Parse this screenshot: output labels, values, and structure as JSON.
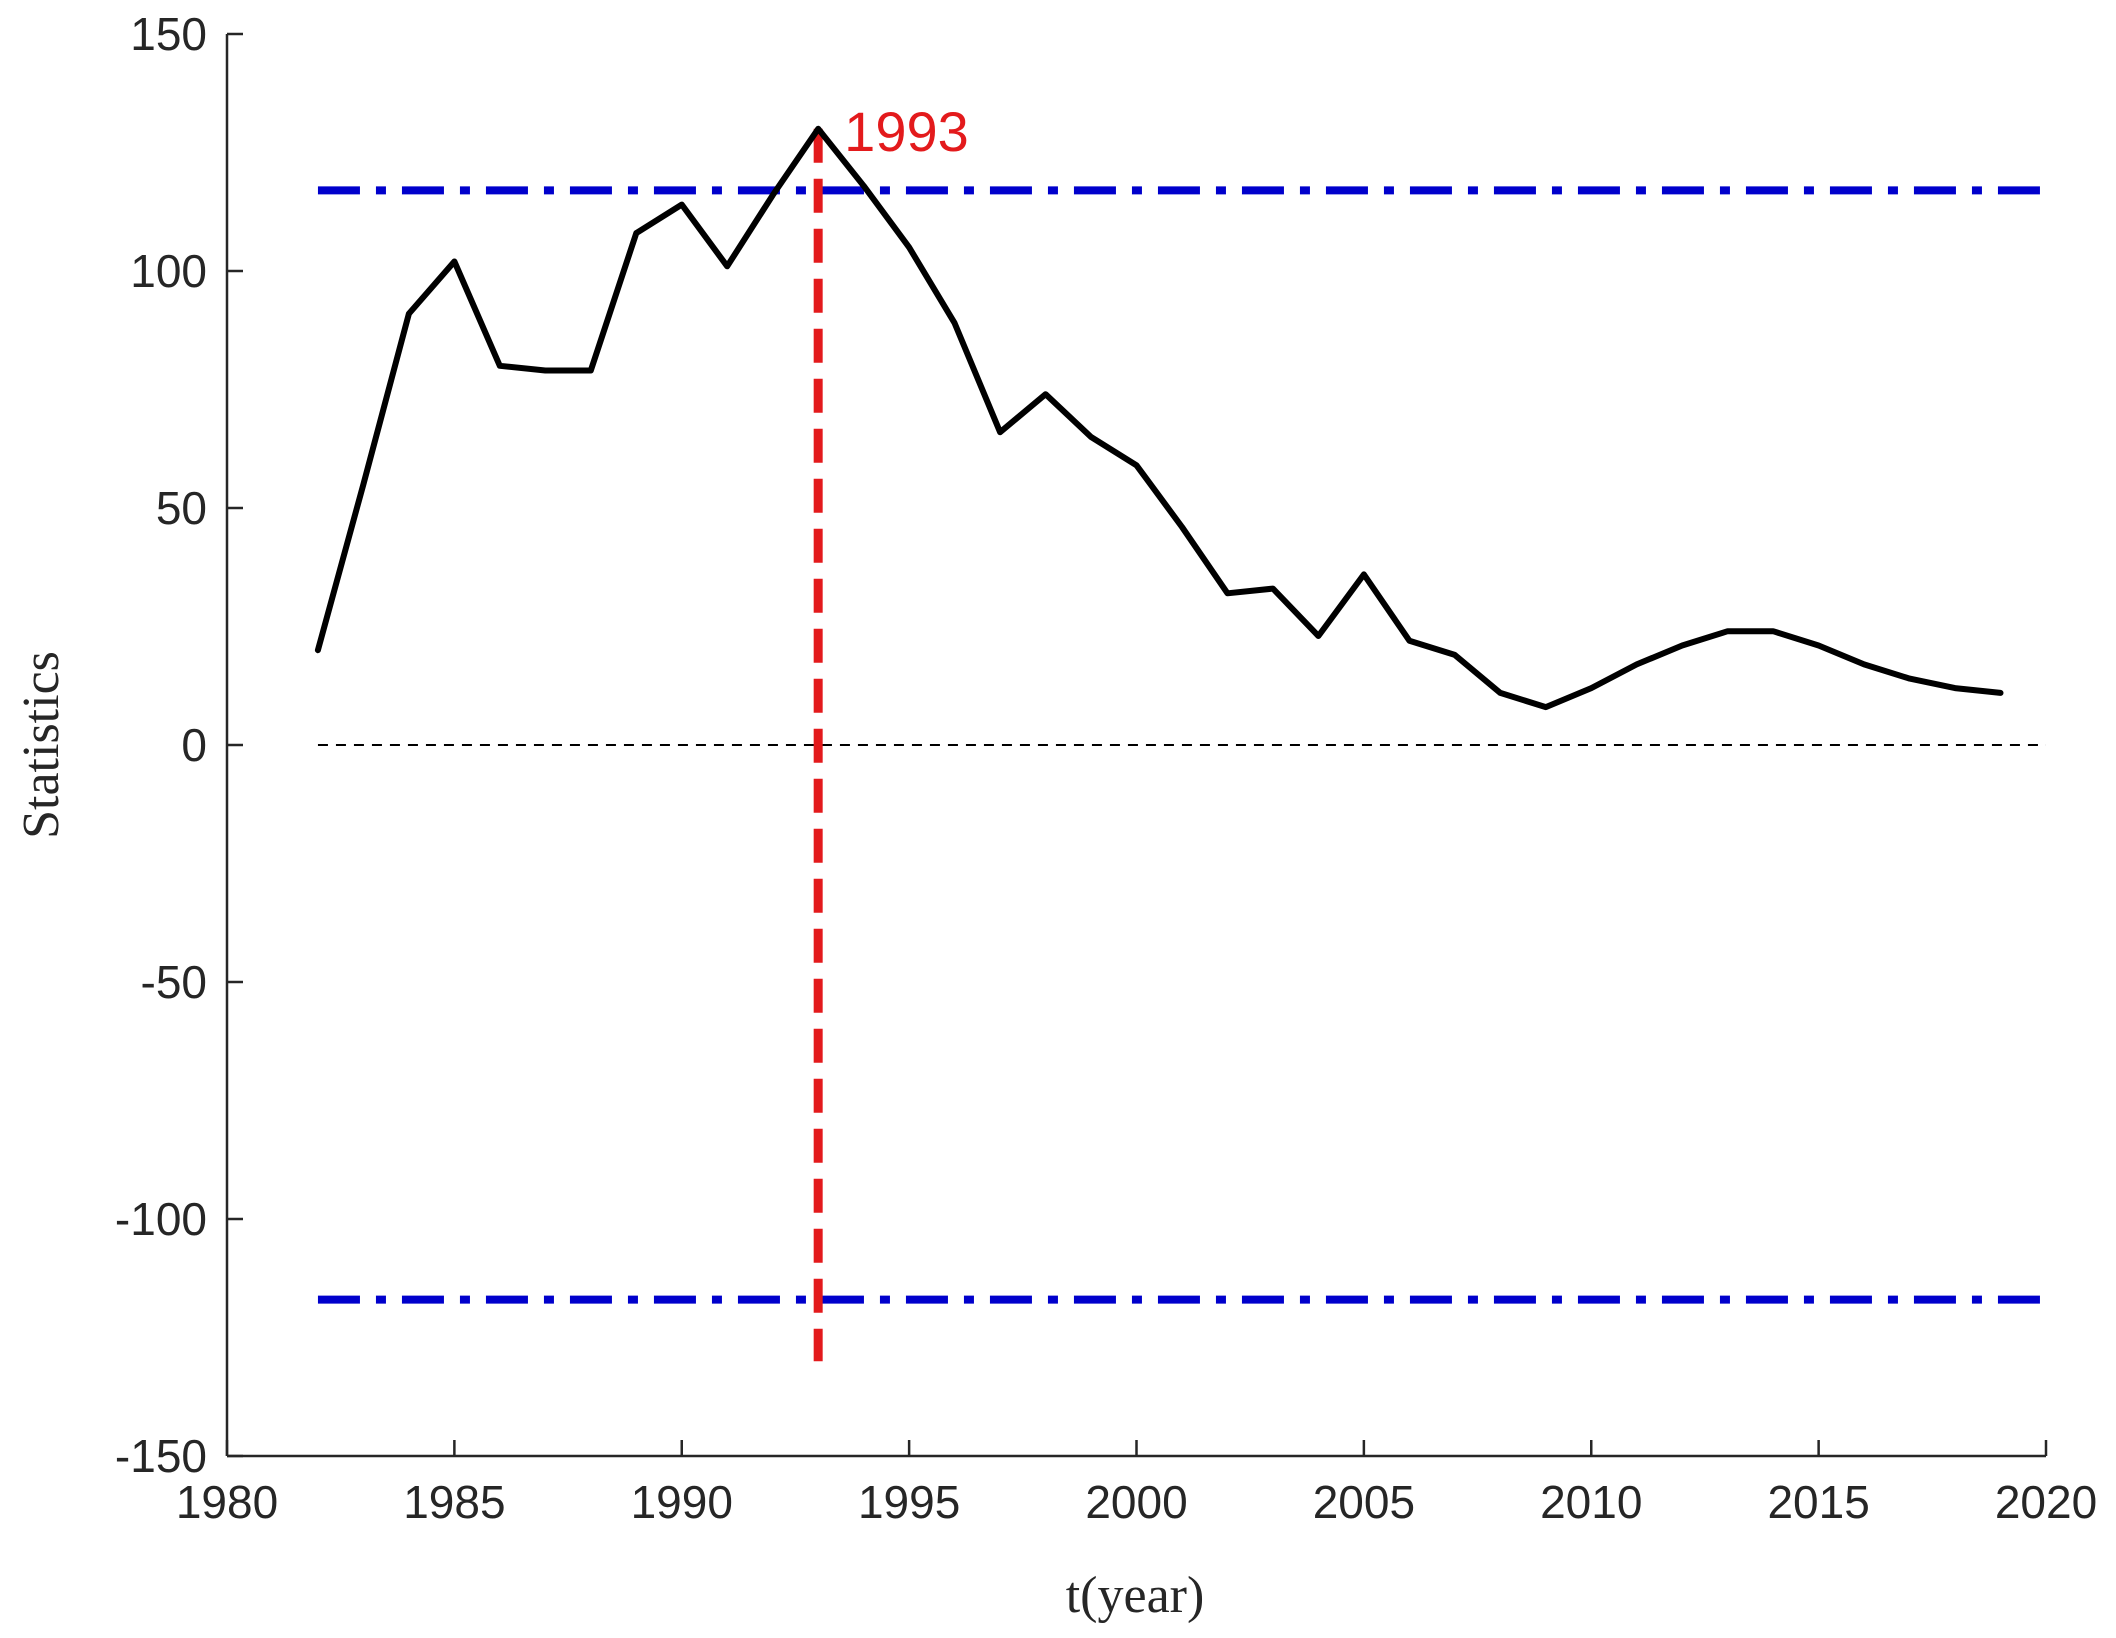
{
  "chart_data": {
    "type": "line",
    "xlabel": "t(year)",
    "ylabel": "Statistics",
    "xlim": [
      1980,
      2020
    ],
    "ylim": [
      -150,
      150
    ],
    "xticks": [
      1980,
      1985,
      1990,
      1995,
      2000,
      2005,
      2010,
      2015,
      2020
    ],
    "yticks": [
      150,
      100,
      50,
      0,
      -50,
      -100,
      -150
    ],
    "grid": false,
    "series": [
      {
        "color": "#000000",
        "x": [
          1982,
          1983,
          1984,
          1985,
          1986,
          1987,
          1988,
          1989,
          1990,
          1991,
          1992,
          1993,
          1994,
          1995,
          1996,
          1997,
          1998,
          1999,
          2000,
          2001,
          2002,
          2003,
          2004,
          2005,
          2006,
          2007,
          2008,
          2009,
          2010,
          2011,
          2012,
          2013,
          2014,
          2015,
          2016,
          2017,
          2018,
          2019
        ],
        "y": [
          20,
          55,
          91,
          102,
          80,
          79,
          79,
          108,
          114,
          101,
          116,
          130,
          118,
          105,
          89,
          66,
          74,
          65,
          59,
          46,
          32,
          33,
          23,
          36,
          22,
          19,
          11,
          8,
          12,
          17,
          21,
          24,
          24,
          21,
          17,
          14,
          12,
          11
        ]
      }
    ],
    "reference_lines": [
      {
        "orientation": "horizontal",
        "value": 117,
        "color": "#0000cc",
        "style": "dash-dot"
      },
      {
        "orientation": "horizontal",
        "value": -117,
        "color": "#0000cc",
        "style": "dash-dot"
      },
      {
        "orientation": "horizontal",
        "value": 0,
        "color": "#000000",
        "style": "dashed"
      },
      {
        "orientation": "vertical",
        "value": 1993,
        "from": -130,
        "to": 130,
        "color": "#e31a1c",
        "style": "dashed"
      }
    ],
    "annotations": [
      {
        "text": "1993",
        "x": 1993,
        "y": 130,
        "color": "#e31a1c"
      }
    ]
  }
}
